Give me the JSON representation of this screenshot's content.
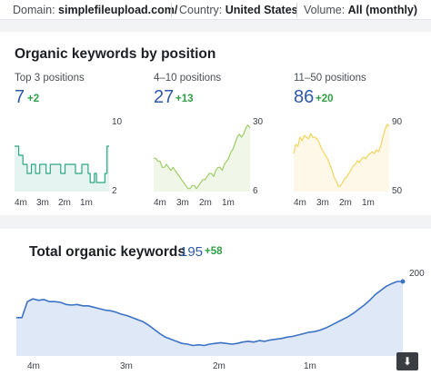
{
  "filters": {
    "domain_label": "Domain:",
    "domain_value": "simplefileupload.com/",
    "country_label": "Country:",
    "country_value": "United States",
    "volume_label": "Volume:",
    "volume_value": "All (monthly)"
  },
  "position_section": {
    "title": "Organic keywords by position",
    "columns": [
      {
        "label": "Top 3 positions",
        "value": "7",
        "delta": "+2",
        "ymax_label": "10",
        "ymin_label": "2",
        "color": "#2aa783"
      },
      {
        "label": "4–10 positions",
        "value": "27",
        "delta": "+13",
        "ymax_label": "30",
        "ymin_label": "6",
        "color": "#9ccc65"
      },
      {
        "label": "11–50 positions",
        "value": "86",
        "delta": "+20",
        "ymax_label": "90",
        "ymin_label": "50",
        "color": "#f3d35b"
      }
    ],
    "x_ticks": [
      "4m",
      "3m",
      "2m",
      "1m"
    ]
  },
  "total_section": {
    "title": "Total organic keywords",
    "value": "195",
    "delta": "+58",
    "ymax_label": "200",
    "x_ticks": [
      "4m",
      "3m",
      "2m",
      "1m"
    ],
    "color": "#3b72c4"
  },
  "download_icon": "download-icon",
  "chart_data": [
    {
      "type": "line",
      "title": "Top 3 positions",
      "ylim": [
        2,
        10
      ],
      "x_ticks": [
        "4m",
        "3m",
        "2m",
        "1m"
      ],
      "values": [
        7,
        7,
        6,
        6,
        5,
        5,
        4,
        4,
        5,
        5,
        4,
        4,
        5,
        5,
        5,
        4,
        4,
        5,
        5,
        5,
        5,
        5,
        4,
        4,
        5,
        5,
        5,
        5,
        5,
        4,
        4,
        4,
        5,
        5,
        5,
        4,
        3,
        3,
        4,
        3,
        3,
        3,
        3,
        4,
        7,
        7
      ]
    },
    {
      "type": "line",
      "title": "4–10 positions",
      "ylim": [
        6,
        30
      ],
      "x_ticks": [
        "4m",
        "3m",
        "2m",
        "1m"
      ],
      "values": [
        17,
        17,
        16,
        16,
        14,
        14,
        15,
        14,
        13,
        14,
        13,
        12,
        11,
        10,
        9,
        8,
        7,
        7,
        8,
        8,
        7,
        8,
        9,
        10,
        10,
        11,
        12,
        12,
        11,
        13,
        14,
        14,
        13,
        15,
        16,
        17,
        19,
        20,
        22,
        24,
        25,
        24,
        25,
        27,
        28,
        27
      ]
    },
    {
      "type": "line",
      "title": "11–50 positions",
      "ylim": [
        50,
        90
      ],
      "x_ticks": [
        "4m",
        "3m",
        "2m",
        "1m"
      ],
      "values": [
        71,
        76,
        75,
        80,
        78,
        81,
        80,
        79,
        82,
        80,
        80,
        79,
        77,
        74,
        72,
        70,
        68,
        65,
        62,
        58,
        56,
        53,
        53,
        55,
        57,
        58,
        60,
        62,
        64,
        65,
        67,
        66,
        68,
        69,
        68,
        70,
        71,
        72,
        71,
        73,
        72,
        75,
        80,
        84,
        87,
        86
      ]
    },
    {
      "type": "area",
      "title": "Total organic keywords",
      "ylim": [
        80,
        200
      ],
      "x_ticks": [
        "4m",
        "3m",
        "2m",
        "1m"
      ],
      "values": [
        135,
        135,
        158,
        162,
        160,
        161,
        158,
        158,
        157,
        154,
        153,
        154,
        152,
        152,
        150,
        148,
        146,
        145,
        143,
        140,
        138,
        135,
        132,
        129,
        124,
        118,
        112,
        107,
        104,
        101,
        98,
        97,
        95,
        96,
        95,
        97,
        98,
        99,
        98,
        97,
        98,
        100,
        101,
        100,
        102,
        101,
        103,
        104,
        105,
        107,
        108,
        110,
        112,
        114,
        115,
        117,
        120,
        124,
        128,
        132,
        136,
        141,
        147,
        153,
        160,
        168,
        174,
        180,
        184,
        187,
        187
      ]
    }
  ]
}
